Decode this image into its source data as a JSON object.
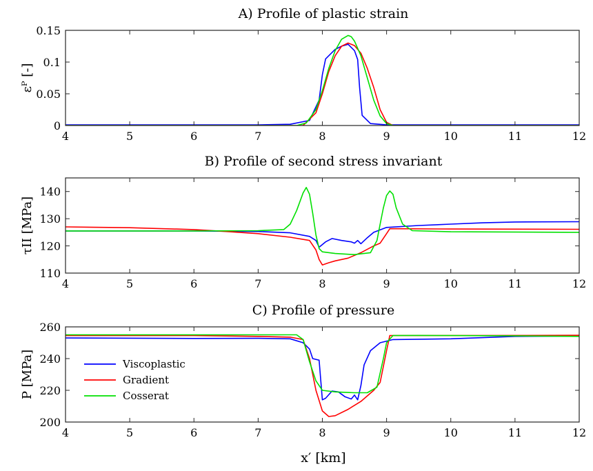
{
  "figure": {
    "xlabel": "x′ [km]"
  },
  "legend": {
    "placement": "center-left of panel C",
    "entries": [
      "Viscoplastic",
      "Gradient",
      "Cosserat"
    ]
  },
  "colors": {
    "Viscoplastic": "#0000ff",
    "Gradient": "#ff0000",
    "Cosserat": "#00e000"
  },
  "chart_data": [
    {
      "type": "line",
      "title": "A) Profile of plastic strain",
      "ylabel": "εᴾ [-]",
      "xlim": [
        4,
        12
      ],
      "ylim": [
        0,
        0.15
      ],
      "xticks": [
        "4",
        "5",
        "6",
        "7",
        "8",
        "9",
        "10",
        "11",
        "12"
      ],
      "yticks": [
        "0",
        "0.05",
        "0.1",
        "0.15"
      ],
      "grid": false,
      "series": [
        {
          "name": "Viscoplastic",
          "points": [
            [
              4,
              0.001
            ],
            [
              7,
              0.001
            ],
            [
              7.5,
              0.002
            ],
            [
              7.8,
              0.008
            ],
            [
              7.95,
              0.04
            ],
            [
              8.0,
              0.08
            ],
            [
              8.05,
              0.105
            ],
            [
              8.2,
              0.12
            ],
            [
              8.3,
              0.125
            ],
            [
              8.4,
              0.128
            ],
            [
              8.5,
              0.118
            ],
            [
              8.55,
              0.104
            ],
            [
              8.58,
              0.06
            ],
            [
              8.62,
              0.016
            ],
            [
              8.75,
              0.003
            ],
            [
              9,
              0.001
            ],
            [
              10,
              0.001
            ],
            [
              12,
              0.001
            ]
          ]
        },
        {
          "name": "Gradient",
          "points": [
            [
              4,
              0
            ],
            [
              7.6,
              0
            ],
            [
              7.7,
              0
            ],
            [
              7.9,
              0.02
            ],
            [
              8.0,
              0.05
            ],
            [
              8.1,
              0.085
            ],
            [
              8.2,
              0.11
            ],
            [
              8.3,
              0.125
            ],
            [
              8.4,
              0.13
            ],
            [
              8.5,
              0.126
            ],
            [
              8.6,
              0.114
            ],
            [
              8.7,
              0.09
            ],
            [
              8.8,
              0.06
            ],
            [
              8.9,
              0.025
            ],
            [
              9.0,
              0.005
            ],
            [
              9.1,
              0
            ],
            [
              12,
              0
            ]
          ]
        },
        {
          "name": "Cosserat",
          "points": [
            [
              4,
              0
            ],
            [
              7.6,
              0
            ],
            [
              7.75,
              0.004
            ],
            [
              7.9,
              0.025
            ],
            [
              8.0,
              0.055
            ],
            [
              8.1,
              0.09
            ],
            [
              8.2,
              0.118
            ],
            [
              8.3,
              0.136
            ],
            [
              8.4,
              0.142
            ],
            [
              8.45,
              0.14
            ],
            [
              8.5,
              0.133
            ],
            [
              8.6,
              0.11
            ],
            [
              8.7,
              0.075
            ],
            [
              8.8,
              0.04
            ],
            [
              8.9,
              0.015
            ],
            [
              9.0,
              0.003
            ],
            [
              9.1,
              0
            ],
            [
              12,
              0
            ]
          ]
        }
      ]
    },
    {
      "type": "line",
      "title": "B) Profile of second stress invariant",
      "ylabel": "τII [MPa]",
      "xlim": [
        4,
        12
      ],
      "ylim": [
        110,
        145
      ],
      "xticks": [
        "4",
        "5",
        "6",
        "7",
        "8",
        "9",
        "10",
        "11",
        "12"
      ],
      "yticks": [
        "110",
        "120",
        "130",
        "140"
      ],
      "grid": false,
      "series": [
        {
          "name": "Viscoplastic",
          "points": [
            [
              4,
              125.5
            ],
            [
              5,
              125.5
            ],
            [
              6,
              125.5
            ],
            [
              6.5,
              125.4
            ],
            [
              7,
              125.3
            ],
            [
              7.5,
              124.8
            ],
            [
              7.8,
              123.5
            ],
            [
              7.9,
              122
            ],
            [
              7.95,
              119.5
            ],
            [
              8.05,
              121.5
            ],
            [
              8.15,
              122.7
            ],
            [
              8.3,
              122
            ],
            [
              8.45,
              121.5
            ],
            [
              8.5,
              121
            ],
            [
              8.55,
              122
            ],
            [
              8.6,
              120.8
            ],
            [
              8.7,
              123
            ],
            [
              8.8,
              125
            ],
            [
              9.0,
              126.8
            ],
            [
              9.5,
              127.5
            ],
            [
              10,
              128
            ],
            [
              10.5,
              128.5
            ],
            [
              11,
              128.8
            ],
            [
              12,
              128.9
            ]
          ]
        },
        {
          "name": "Gradient",
          "points": [
            [
              4,
              127
            ],
            [
              5,
              126.7
            ],
            [
              6,
              126
            ],
            [
              6.5,
              125.3
            ],
            [
              7,
              124.5
            ],
            [
              7.5,
              123.2
            ],
            [
              7.8,
              122
            ],
            [
              7.9,
              118.5
            ],
            [
              7.95,
              115
            ],
            [
              8.0,
              113
            ],
            [
              8.1,
              113.8
            ],
            [
              8.2,
              114.5
            ],
            [
              8.4,
              115.5
            ],
            [
              8.6,
              117.5
            ],
            [
              8.8,
              120
            ],
            [
              8.9,
              121
            ],
            [
              9.0,
              124.5
            ],
            [
              9.05,
              126.3
            ],
            [
              9.2,
              126.3
            ],
            [
              10,
              126.2
            ],
            [
              12,
              126.1
            ]
          ]
        },
        {
          "name": "Cosserat",
          "points": [
            [
              4,
              125.5
            ],
            [
              6,
              125.5
            ],
            [
              7,
              125.6
            ],
            [
              7.4,
              126
            ],
            [
              7.5,
              128
            ],
            [
              7.6,
              133
            ],
            [
              7.7,
              139.5
            ],
            [
              7.75,
              141.5
            ],
            [
              7.8,
              139
            ],
            [
              7.85,
              132
            ],
            [
              7.9,
              124
            ],
            [
              7.95,
              119
            ],
            [
              8.0,
              117.8
            ],
            [
              8.2,
              117.2
            ],
            [
              8.5,
              116.8
            ],
            [
              8.75,
              117.5
            ],
            [
              8.85,
              122
            ],
            [
              8.9,
              128
            ],
            [
              8.95,
              134
            ],
            [
              9.0,
              138.5
            ],
            [
              9.05,
              140.2
            ],
            [
              9.1,
              139
            ],
            [
              9.15,
              134
            ],
            [
              9.25,
              128
            ],
            [
              9.4,
              125.6
            ],
            [
              10,
              125.2
            ],
            [
              12,
              125
            ]
          ]
        }
      ]
    },
    {
      "type": "line",
      "title": "C) Profile of pressure",
      "ylabel": "P [MPa]",
      "xlim": [
        4,
        12
      ],
      "ylim": [
        200,
        260
      ],
      "xticks": [
        "4",
        "5",
        "6",
        "7",
        "8",
        "9",
        "10",
        "11",
        "12"
      ],
      "yticks": [
        "200",
        "220",
        "240",
        "260"
      ],
      "grid": false,
      "series": [
        {
          "name": "Viscoplastic",
          "points": [
            [
              4,
              253
            ],
            [
              6,
              252.7
            ],
            [
              7,
              252.8
            ],
            [
              7.5,
              252.5
            ],
            [
              7.7,
              250
            ],
            [
              7.8,
              246
            ],
            [
              7.85,
              240
            ],
            [
              7.95,
              239
            ],
            [
              8.0,
              214
            ],
            [
              8.05,
              215
            ],
            [
              8.15,
              219.5
            ],
            [
              8.25,
              219
            ],
            [
              8.35,
              216
            ],
            [
              8.45,
              214.5
            ],
            [
              8.5,
              217
            ],
            [
              8.55,
              214
            ],
            [
              8.6,
              223
            ],
            [
              8.65,
              236
            ],
            [
              8.75,
              245
            ],
            [
              8.9,
              250
            ],
            [
              9.1,
              252
            ],
            [
              10,
              252.5
            ],
            [
              11,
              254
            ],
            [
              12,
              254.2
            ]
          ]
        },
        {
          "name": "Gradient",
          "points": [
            [
              4,
              254.5
            ],
            [
              6,
              254.5
            ],
            [
              7,
              254
            ],
            [
              7.5,
              253.5
            ],
            [
              7.7,
              252
            ],
            [
              7.8,
              240
            ],
            [
              7.9,
              220
            ],
            [
              8.0,
              207
            ],
            [
              8.1,
              203.5
            ],
            [
              8.2,
              204
            ],
            [
              8.4,
              208
            ],
            [
              8.6,
              213
            ],
            [
              8.8,
              220
            ],
            [
              8.9,
              225
            ],
            [
              9.0,
              245
            ],
            [
              9.05,
              254.5
            ],
            [
              9.2,
              254.5
            ],
            [
              10,
              254.5
            ],
            [
              11,
              254.6
            ],
            [
              12,
              254.7
            ]
          ]
        },
        {
          "name": "Cosserat",
          "points": [
            [
              4,
              255
            ],
            [
              6,
              255
            ],
            [
              7.6,
              255
            ],
            [
              7.7,
              252
            ],
            [
              7.8,
              238
            ],
            [
              7.9,
              226
            ],
            [
              8.0,
              220
            ],
            [
              8.2,
              219
            ],
            [
              8.5,
              218.5
            ],
            [
              8.7,
              218.5
            ],
            [
              8.85,
              222
            ],
            [
              8.95,
              240
            ],
            [
              9.0,
              250
            ],
            [
              9.1,
              254.5
            ],
            [
              9.5,
              254.6
            ],
            [
              10,
              254.5
            ],
            [
              11,
              254.3
            ],
            [
              12,
              254
            ]
          ]
        }
      ]
    }
  ]
}
